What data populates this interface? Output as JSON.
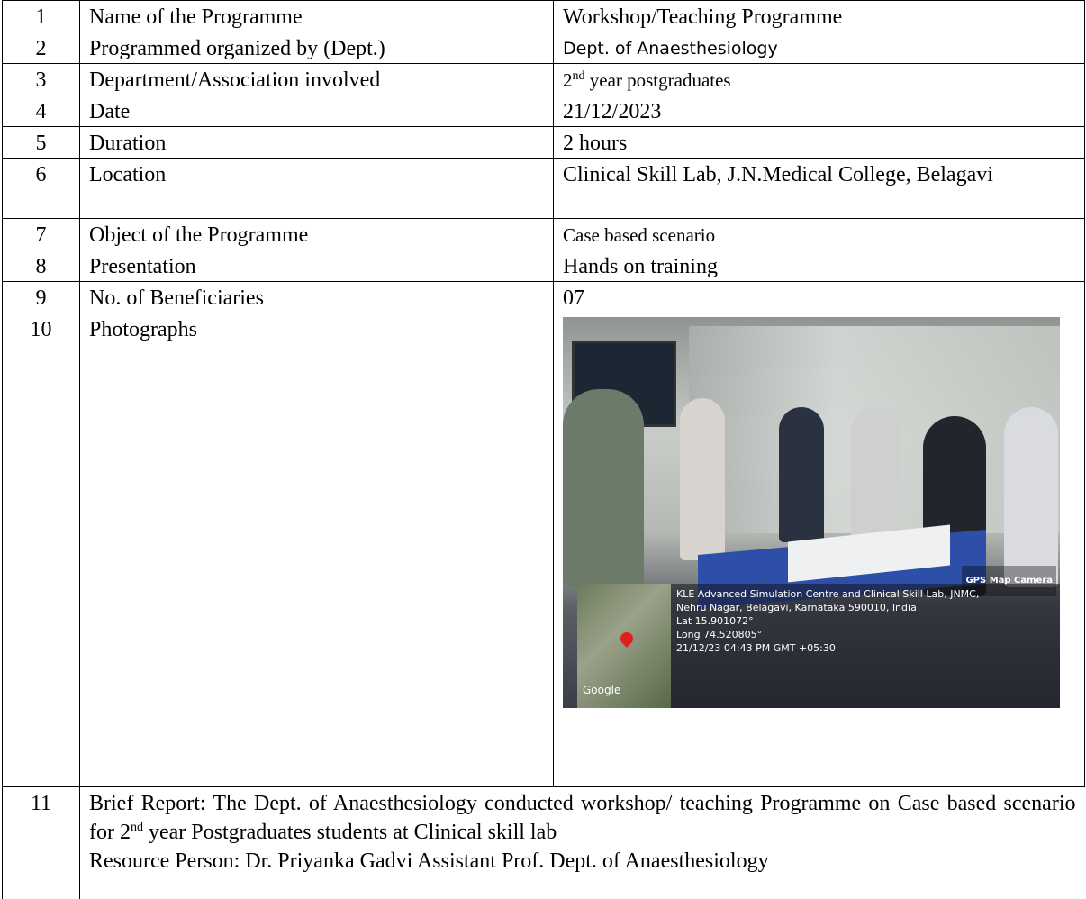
{
  "table": {
    "rows": [
      [
        "1",
        "Name of the Programme",
        "Workshop/Teaching Programme"
      ],
      [
        "2",
        "Programmed organized by (Dept.)",
        "Dept. of Anaesthesiology"
      ],
      [
        "3",
        "Department/Association involved",
        {
          "number": "2",
          "sup": "nd",
          "text": " year postgraduates"
        }
      ],
      [
        "4",
        "Date",
        "21/12/2023"
      ],
      [
        "5",
        "Duration",
        "2 hours"
      ],
      [
        "6",
        "Location",
        "Clinical Skill Lab, J.N.Medical College, Belagavi"
      ],
      [
        "7",
        "Object of the Programme",
        "Case based scenario"
      ],
      [
        "8",
        "Presentation",
        "Hands on training"
      ],
      [
        "9",
        "No. of Beneficiaries",
        "07"
      ],
      [
        "10",
        "Photographs",
        {
          "badge": "GPS Map Camera",
          "address_1": "KLE Advanced Simulation Centre and Clinical Skill Lab, JNMC,",
          "address_2": "Nehru Nagar, Belagavi, Karnataka 590010, India",
          "lat": "Lat 15.901072°",
          "long": "Long 74.520805°",
          "timestamp": "21/12/23 04:43 PM GMT +05:30",
          "map_label": "Google"
        }
      ],
      [
        "11",
        {
          "report_1": "Brief Report: The Dept. of Anaesthesiology conducted workshop/ teaching Programme on Case based scenario for ",
          "report_sup_num": "2",
          "report_sup": "nd",
          "report_2": " year Postgraduates students at Clinical skill lab",
          "resource": "Resource Person: Dr. Priyanka Gadvi Assistant Prof. Dept. of Anaesthesiology"
        }
      ]
    ]
  }
}
